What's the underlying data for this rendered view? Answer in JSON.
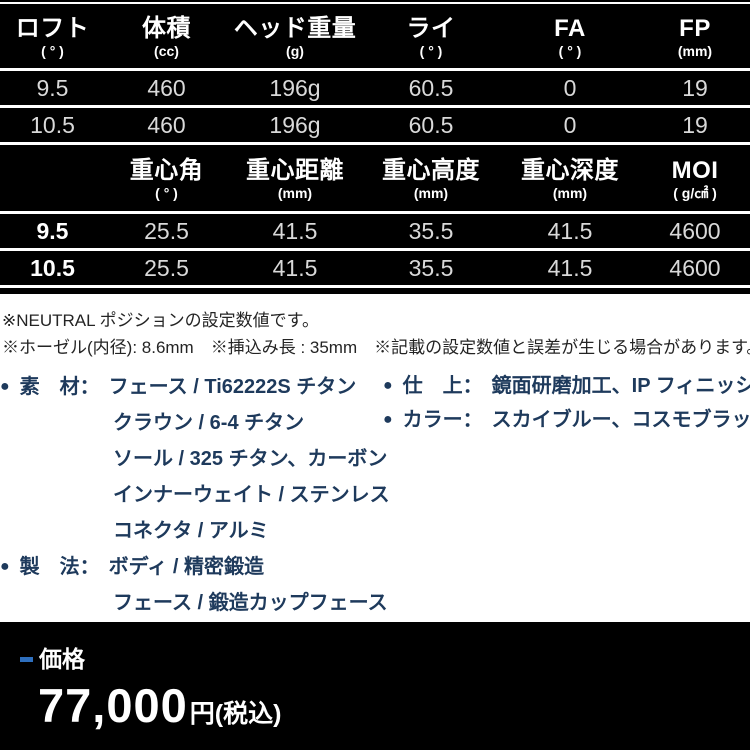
{
  "colors": {
    "accent_blue": "#2e6fbe",
    "navy": "#1e3a5c",
    "table_bg": "#000000",
    "page_bg": "#ffffff"
  },
  "head_table": {
    "headers": [
      {
        "label": "ロフト",
        "unit": "( ° )"
      },
      {
        "label": "体積",
        "unit": "(cc)"
      },
      {
        "label": "ヘッド重量",
        "unit": "(g)"
      },
      {
        "label": "ライ",
        "unit": "( ° )"
      },
      {
        "label": "FA",
        "unit": "( ° )"
      },
      {
        "label": "FP",
        "unit": "(mm)"
      }
    ],
    "rows": [
      [
        "9.5",
        "460",
        "196g",
        "60.5",
        "0",
        "19"
      ],
      [
        "10.5",
        "460",
        "196g",
        "60.5",
        "0",
        "19"
      ]
    ]
  },
  "cg_table": {
    "headers": [
      {
        "label": "",
        "unit": ""
      },
      {
        "label": "重心角",
        "unit": "( ° )"
      },
      {
        "label": "重心距離",
        "unit": "(mm)"
      },
      {
        "label": "重心高度",
        "unit": "(mm)"
      },
      {
        "label": "重心深度",
        "unit": "(mm)"
      },
      {
        "label": "MOI",
        "unit": "( g/㎠ )"
      }
    ],
    "rows": [
      [
        "9.5",
        "25.5",
        "41.5",
        "35.5",
        "41.5",
        "4600"
      ],
      [
        "10.5",
        "25.5",
        "41.5",
        "35.5",
        "41.5",
        "4600"
      ]
    ]
  },
  "notes": {
    "line1": "※NEUTRAL ポジションの設定数値です。",
    "line2": "※ホーゼル(内径): 8.6mm　※挿込み長 : 35mm　※記載の設定数値と誤差が生じる場合があります。"
  },
  "specs": {
    "material": {
      "bullet": "●",
      "label": "素　材：",
      "lines": [
        "フェース / Ti62222S チタン",
        "クラウン / 6-4 チタン",
        "ソール / 325 チタン、カーボン",
        "インナーウェイト / ステンレス",
        "コネクタ / アルミ"
      ]
    },
    "method": {
      "bullet": "●",
      "label": "製　法：",
      "lines": [
        "ボディ / 精密鍛造",
        "フェース / 鍛造カップフェース"
      ]
    },
    "finish": {
      "bullet": "●",
      "label": "仕　上：",
      "value": "鏡面研磨加工、IP フィニッシュ"
    },
    "color": {
      "bullet": "●",
      "label": "カラー：",
      "value": "スカイブルー、コスモブラック"
    }
  },
  "price": {
    "label": "価格",
    "amount": "77,000",
    "unit": "円(税込)"
  }
}
